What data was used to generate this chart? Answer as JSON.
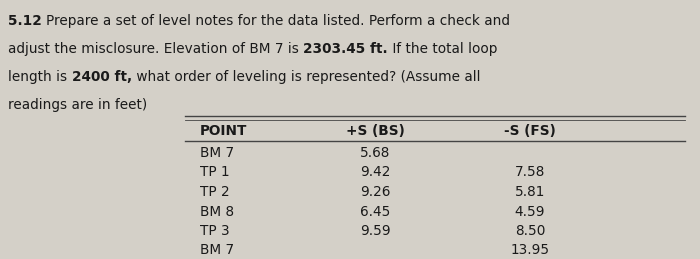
{
  "bg_color": "#d4d0c8",
  "text_color": "#1a1a1a",
  "para_font_size": 9.8,
  "table_font_size": 9.8,
  "col_headers": [
    "POINT",
    "+S (BS)",
    "-S (FS)"
  ],
  "rows": [
    [
      "BM 7",
      "5.68",
      ""
    ],
    [
      "TP 1",
      "9.42",
      "7.58"
    ],
    [
      "TP 2",
      "9.26",
      "5.81"
    ],
    [
      "BM 8",
      "6.45",
      "4.59"
    ],
    [
      "TP 3",
      "9.59",
      "8.50"
    ],
    [
      "BM 7",
      "",
      "13.95"
    ]
  ],
  "line1_parts": [
    [
      "5.12 ",
      true
    ],
    [
      "Prepare a set of level notes for the data listed. Perform a check and",
      false
    ]
  ],
  "line2_parts": [
    [
      "adjust the misclosure. Elevation of BM 7 is ",
      false
    ],
    [
      "2303.45 ft.",
      true
    ],
    [
      " If the total loop",
      false
    ]
  ],
  "line3_parts": [
    [
      "length is ",
      false
    ],
    [
      "2400 ft,",
      true
    ],
    [
      " what order of leveling is represented? (Assume all",
      false
    ]
  ],
  "line4_parts": [
    [
      "readings are in feet)",
      false
    ]
  ]
}
